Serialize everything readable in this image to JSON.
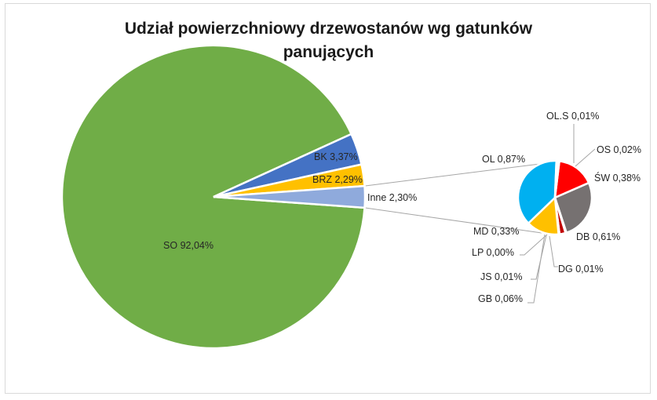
{
  "chart_data": {
    "type": "pie",
    "subtype": "pie-of-pie",
    "title_lines": [
      "Udział powierzchniowy drzewostanów wg gatunków",
      "panujących"
    ],
    "main_slices": [
      {
        "label": "SO 92,04%",
        "value": 92.04,
        "color": "#70ad47"
      },
      {
        "label": "BK 3,37%",
        "value": 3.37,
        "color": "#4472c4"
      },
      {
        "label": "BRZ 2,29%",
        "value": 2.29,
        "color": "#ffc000"
      },
      {
        "label": "Inne 2,30%",
        "value": 2.3,
        "color": "#8faadc"
      }
    ],
    "secondary_slices": [
      {
        "label": "ŚW 0,38%",
        "value": 0.38,
        "color": "#ff0000"
      },
      {
        "label": "DB 0,61%",
        "value": 0.61,
        "color": "#767171"
      },
      {
        "label": "DG 0,01%",
        "value": 0.01,
        "color": "#70ad47"
      },
      {
        "label": "GB 0,06%",
        "value": 0.06,
        "color": "#c00000"
      },
      {
        "label": "JS 0,01%",
        "value": 0.01,
        "color": "#4472c4"
      },
      {
        "label": "LP 0,00%",
        "value": 0.0,
        "color": "#ed7d31"
      },
      {
        "label": "MD 0,33%",
        "value": 0.33,
        "color": "#ffc000"
      },
      {
        "label": "OL 0,87%",
        "value": 0.87,
        "color": "#00b0f0"
      },
      {
        "label": "OL.S 0,01%",
        "value": 0.01,
        "color": "#2e75b6"
      },
      {
        "label": "OS 0,02%",
        "value": 0.02,
        "color": "#a9d18e"
      }
    ],
    "legend": "none"
  }
}
